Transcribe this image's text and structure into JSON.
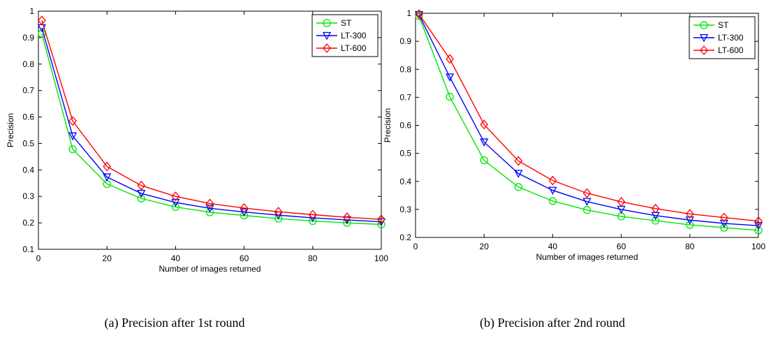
{
  "series_colors": {
    "ST": "#00e600",
    "LT-300": "#0000ff",
    "LT-600": "#ff0000"
  },
  "chart_data": [
    {
      "type": "line",
      "caption": "(a) Precision after 1st round",
      "xlabel": "Number of images returned",
      "ylabel": "Precision",
      "xlim": [
        0,
        100
      ],
      "ylim": [
        0.1,
        1
      ],
      "xticks": [
        0,
        20,
        40,
        60,
        80,
        100
      ],
      "yticks": [
        0.1,
        0.2,
        0.3,
        0.4,
        0.5,
        0.6,
        0.7,
        0.8,
        0.9,
        1
      ],
      "ytick_labels": [
        "0.1",
        "0.2",
        "0.3",
        "0.4",
        "0.5",
        "0.6",
        "0.7",
        "0.8",
        "0.9",
        "1"
      ],
      "legend_position": "top-right",
      "grid": false,
      "x": [
        1,
        10,
        20,
        30,
        40,
        50,
        60,
        70,
        80,
        90,
        100
      ],
      "series": [
        {
          "name": "ST",
          "marker": "circle",
          "values": [
            0.915,
            0.478,
            0.347,
            0.292,
            0.26,
            0.24,
            0.228,
            0.216,
            0.207,
            0.2,
            0.194
          ]
        },
        {
          "name": "LT-300",
          "marker": "triangle-down",
          "values": [
            0.937,
            0.528,
            0.373,
            0.311,
            0.277,
            0.255,
            0.241,
            0.229,
            0.219,
            0.211,
            0.204
          ]
        },
        {
          "name": "LT-600",
          "marker": "diamond",
          "values": [
            0.965,
            0.585,
            0.413,
            0.341,
            0.3,
            0.273,
            0.256,
            0.242,
            0.231,
            0.221,
            0.213
          ]
        }
      ]
    },
    {
      "type": "line",
      "caption": "(b) Precision after 2nd round",
      "xlabel": "Number of images returned",
      "ylabel": "Precision",
      "xlim": [
        0,
        100
      ],
      "ylim": [
        0.2,
        1
      ],
      "xticks": [
        0,
        20,
        40,
        60,
        80,
        100
      ],
      "yticks": [
        0.2,
        0.3,
        0.4,
        0.5,
        0.6,
        0.7,
        0.8,
        0.9,
        1
      ],
      "ytick_labels": [
        "0.2",
        "0.3",
        "0.4",
        "0.5",
        "0.6",
        "0.7",
        "0.8",
        "0.9",
        "1"
      ],
      "legend_position": "top-right",
      "grid": false,
      "x": [
        1,
        10,
        20,
        30,
        40,
        50,
        60,
        70,
        80,
        90,
        100
      ],
      "series": [
        {
          "name": "ST",
          "marker": "circle",
          "values": [
            0.99,
            0.702,
            0.475,
            0.38,
            0.33,
            0.298,
            0.275,
            0.26,
            0.245,
            0.235,
            0.225
          ]
        },
        {
          "name": "LT-300",
          "marker": "triangle-down",
          "values": [
            0.995,
            0.772,
            0.54,
            0.428,
            0.368,
            0.328,
            0.3,
            0.278,
            0.262,
            0.25,
            0.242
          ]
        },
        {
          "name": "LT-600",
          "marker": "diamond",
          "values": [
            0.997,
            0.837,
            0.603,
            0.473,
            0.403,
            0.358,
            0.327,
            0.303,
            0.284,
            0.271,
            0.258
          ]
        }
      ]
    }
  ]
}
